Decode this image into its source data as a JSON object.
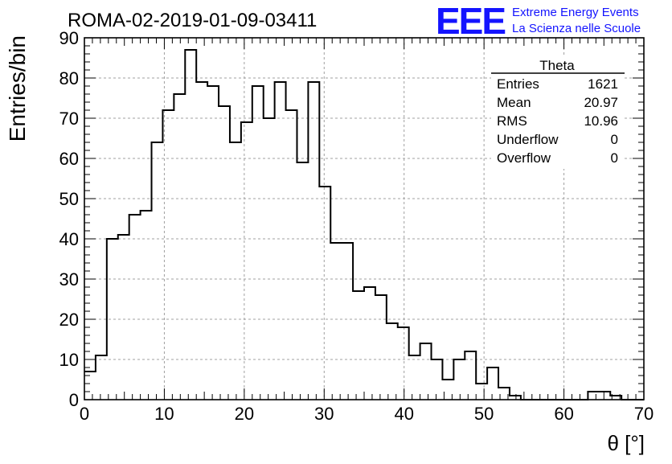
{
  "header": {
    "title": "ROMA-02-2019-01-09-03411",
    "logo_text": "EEE",
    "org_line1": "Extreme Energy Events",
    "org_line2": "La Scienza nelle Scuole",
    "brand_color": "#1414ff"
  },
  "stats_box": {
    "title": "Theta",
    "rows": [
      {
        "label": "Entries",
        "value": "1621"
      },
      {
        "label": "Mean",
        "value": "20.97"
      },
      {
        "label": "RMS",
        "value": "10.96"
      },
      {
        "label": "Underflow",
        "value": "0"
      },
      {
        "label": "Overflow",
        "value": "0"
      }
    ]
  },
  "chart_data": {
    "type": "histogram",
    "title": "ROMA-02-2019-01-09-03411",
    "xlabel": "θ [°]",
    "ylabel": "Entries/bin",
    "xlim": [
      0,
      70
    ],
    "ylim": [
      0,
      90
    ],
    "bin_width": 1.4,
    "bin_edges_start": 0,
    "x_ticks": [
      "0",
      "10",
      "20",
      "30",
      "40",
      "50",
      "60",
      "70"
    ],
    "y_ticks": [
      "0",
      "10",
      "20",
      "30",
      "40",
      "50",
      "60",
      "70",
      "80",
      "90"
    ],
    "grid": true,
    "values": [
      7,
      11,
      40,
      41,
      46,
      47,
      64,
      72,
      76,
      87,
      79,
      78,
      73,
      64,
      69,
      78,
      70,
      79,
      72,
      59,
      79,
      53,
      39,
      39,
      27,
      28,
      26,
      19,
      18,
      11,
      14,
      10,
      5,
      10,
      12,
      4,
      8,
      3,
      1,
      0,
      0,
      0,
      0,
      0,
      0,
      2,
      2,
      1,
      0,
      0
    ],
    "line_color": "#000000",
    "grid_color": "#a0a0a0"
  }
}
